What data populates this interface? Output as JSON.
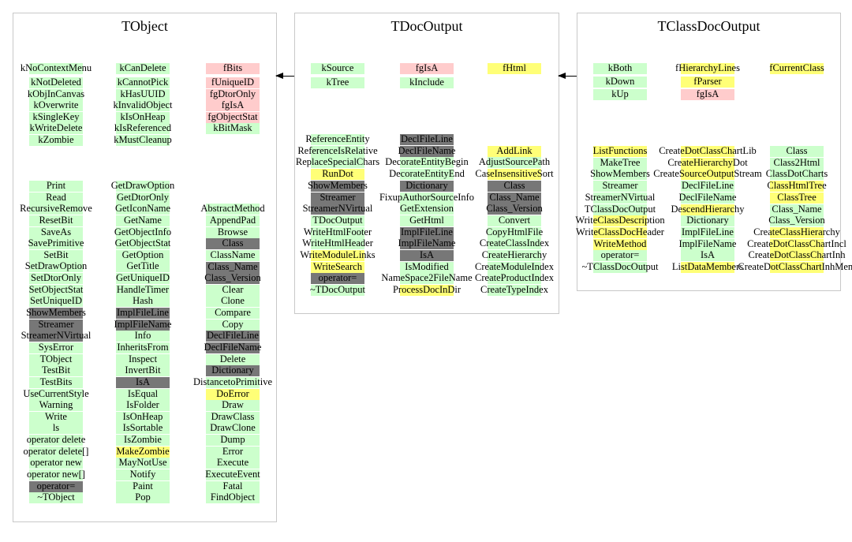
{
  "colors": {
    "g": "#ccffcc",
    "p": "#ffcccc",
    "y": "#ffff77",
    "d": "#777777"
  },
  "classes": [
    {
      "name": "TObject",
      "groups": [
        {
          "cols": [
            [
              [
                "kNoContextMenu",
                "g"
              ]
            ],
            [
              [
                "kCanDelete",
                "g"
              ]
            ],
            [
              [
                "fBits",
                "p"
              ]
            ]
          ]
        },
        {
          "cols": [
            [
              [
                "kNotDeleted",
                "g"
              ],
              [
                "kObjInCanvas",
                "g"
              ],
              [
                "kOverwrite",
                "g"
              ],
              [
                "kSingleKey",
                "g"
              ],
              [
                "kWriteDelete",
                "g"
              ],
              [
                "kZombie",
                "g"
              ]
            ],
            [
              [
                "kCannotPick",
                "g"
              ],
              [
                "kHasUUID",
                "g"
              ],
              [
                "kInvalidObject",
                "g"
              ],
              [
                "kIsOnHeap",
                "g"
              ],
              [
                "kIsReferenced",
                "g"
              ],
              [
                "kMustCleanup",
                "g"
              ]
            ],
            [
              [
                "fUniqueID",
                "p"
              ],
              [
                "fgDtorOnly",
                "p"
              ],
              [
                "fgIsA",
                "p"
              ],
              [
                "fgObjectStat",
                "p"
              ],
              [
                "kBitMask",
                "g"
              ]
            ]
          ]
        },
        {
          "cols": [
            [
              [
                "Print",
                "g"
              ],
              [
                "Read",
                "g"
              ],
              [
                "RecursiveRemove",
                "g"
              ],
              [
                "ResetBit",
                "g"
              ],
              [
                "SaveAs",
                "g"
              ],
              [
                "SavePrimitive",
                "g"
              ],
              [
                "SetBit",
                "g"
              ],
              [
                "SetDrawOption",
                "g"
              ],
              [
                "SetDtorOnly",
                "g"
              ],
              [
                "SetObjectStat",
                "g"
              ],
              [
                "SetUniqueID",
                "g"
              ],
              [
                "ShowMembers",
                "d"
              ],
              [
                "Streamer",
                "d"
              ],
              [
                "StreamerNVirtual",
                "d"
              ],
              [
                "SysError",
                "g"
              ],
              [
                "TObject",
                "g"
              ],
              [
                "TestBit",
                "g"
              ],
              [
                "TestBits",
                "g"
              ],
              [
                "UseCurrentStyle",
                "g"
              ],
              [
                "Warning",
                "g"
              ],
              [
                "Write",
                "g"
              ],
              [
                "ls",
                "g"
              ],
              [
                "operator delete",
                "g"
              ],
              [
                "operator delete[]",
                "g"
              ],
              [
                "operator new",
                "g"
              ],
              [
                "operator new[]",
                "g"
              ],
              [
                "operator=",
                "d"
              ],
              [
                "~TObject",
                "g"
              ]
            ],
            [
              [
                "GetDrawOption",
                "g"
              ],
              [
                "GetDtorOnly",
                "g"
              ],
              [
                "GetIconName",
                "g"
              ],
              [
                "GetName",
                "g"
              ],
              [
                "GetObjectInfo",
                "g"
              ],
              [
                "GetObjectStat",
                "g"
              ],
              [
                "GetOption",
                "g"
              ],
              [
                "GetTitle",
                "g"
              ],
              [
                "GetUniqueID",
                "g"
              ],
              [
                "HandleTimer",
                "g"
              ],
              [
                "Hash",
                "g"
              ],
              [
                "ImplFileLine",
                "d"
              ],
              [
                "ImplFileName",
                "d"
              ],
              [
                "Info",
                "g"
              ],
              [
                "InheritsFrom",
                "g"
              ],
              [
                "Inspect",
                "g"
              ],
              [
                "InvertBit",
                "g"
              ],
              [
                "IsA",
                "d"
              ],
              [
                "IsEqual",
                "g"
              ],
              [
                "IsFolder",
                "g"
              ],
              [
                "IsOnHeap",
                "g"
              ],
              [
                "IsSortable",
                "g"
              ],
              [
                "IsZombie",
                "g"
              ],
              [
                "MakeZombie",
                "y"
              ],
              [
                "MayNotUse",
                "g"
              ],
              [
                "Notify",
                "g"
              ],
              [
                "Paint",
                "g"
              ],
              [
                "Pop",
                "g"
              ]
            ],
            [
              [
                "AbstractMethod",
                "g"
              ],
              [
                "AppendPad",
                "g"
              ],
              [
                "Browse",
                "g"
              ],
              [
                "Class",
                "d"
              ],
              [
                "ClassName",
                "g"
              ],
              [
                "Class_Name",
                "d"
              ],
              [
                "Class_Version",
                "d"
              ],
              [
                "Clear",
                "g"
              ],
              [
                "Clone",
                "g"
              ],
              [
                "Compare",
                "g"
              ],
              [
                "Copy",
                "g"
              ],
              [
                "DeclFileLine",
                "d"
              ],
              [
                "DeclFileName",
                "d"
              ],
              [
                "Delete",
                "g"
              ],
              [
                "Dictionary",
                "d"
              ],
              [
                "DistancetoPrimitive",
                "g"
              ],
              [
                "DoError",
                "y"
              ],
              [
                "Draw",
                "g"
              ],
              [
                "DrawClass",
                "g"
              ],
              [
                "DrawClone",
                "g"
              ],
              [
                "Dump",
                "g"
              ],
              [
                "Error",
                "g"
              ],
              [
                "Execute",
                "g"
              ],
              [
                "ExecuteEvent",
                "g"
              ],
              [
                "Fatal",
                "g"
              ],
              [
                "FindObject",
                "g"
              ]
            ]
          ]
        }
      ]
    },
    {
      "name": "TDocOutput",
      "groups": [
        {
          "cols": [
            [
              [
                "kSource",
                "g"
              ],
              [
                "kTree",
                "g"
              ]
            ],
            [
              [
                "fgIsA",
                "p"
              ],
              [
                "kInclude",
                "g"
              ]
            ],
            [
              [
                "fHtml",
                "y"
              ]
            ]
          ]
        },
        {
          "cols": [
            [
              [
                "ReferenceEntity",
                "g"
              ],
              [
                "ReferenceIsRelative",
                "g"
              ],
              [
                "ReplaceSpecialChars",
                "g"
              ],
              [
                "RunDot",
                "y"
              ],
              [
                "ShowMembers",
                "d"
              ],
              [
                "Streamer",
                "d"
              ],
              [
                "StreamerNVirtual",
                "d"
              ],
              [
                "TDocOutput",
                "g"
              ],
              [
                "WriteHtmlFooter",
                "g"
              ],
              [
                "WriteHtmlHeader",
                "g"
              ],
              [
                "WriteModuleLinks",
                "y"
              ],
              [
                "WriteSearch",
                "y"
              ],
              [
                "operator=",
                "d"
              ],
              [
                "~TDocOutput",
                "g"
              ]
            ],
            [
              [
                "DeclFileLine",
                "d"
              ],
              [
                "DeclFileName",
                "d"
              ],
              [
                "DecorateEntityBegin",
                "g"
              ],
              [
                "DecorateEntityEnd",
                "g"
              ],
              [
                "Dictionary",
                "d"
              ],
              [
                "FixupAuthorSourceInfo",
                "g"
              ],
              [
                "GetExtension",
                "g"
              ],
              [
                "GetHtml",
                "g"
              ],
              [
                "ImplFileLine",
                "d"
              ],
              [
                "ImplFileName",
                "d"
              ],
              [
                "IsA",
                "d"
              ],
              [
                "IsModified",
                "g"
              ],
              [
                "NameSpace2FileName",
                "g"
              ],
              [
                "ProcessDocInDir",
                "y"
              ]
            ],
            [
              [
                "AddLink",
                "y"
              ],
              [
                "AdjustSourcePath",
                "g"
              ],
              [
                "CaseInsensitiveSort",
                "y"
              ],
              [
                "Class",
                "d"
              ],
              [
                "Class_Name",
                "d"
              ],
              [
                "Class_Version",
                "d"
              ],
              [
                "Convert",
                "g"
              ],
              [
                "CopyHtmlFile",
                "g"
              ],
              [
                "CreateClassIndex",
                "g"
              ],
              [
                "CreateHierarchy",
                "g"
              ],
              [
                "CreateModuleIndex",
                "g"
              ],
              [
                "CreateProductIndex",
                "g"
              ],
              [
                "CreateTypeIndex",
                "g"
              ]
            ]
          ]
        }
      ]
    },
    {
      "name": "TClassDocOutput",
      "groups": [
        {
          "cols": [
            [
              [
                "kBoth",
                "g"
              ],
              [
                "kDown",
                "g"
              ],
              [
                "kUp",
                "g"
              ]
            ],
            [
              [
                "fHierarchyLines",
                "y"
              ],
              [
                "fParser",
                "y"
              ],
              [
                "fgIsA",
                "p"
              ]
            ],
            [
              [
                "fCurrentClass",
                "y"
              ]
            ]
          ]
        },
        {
          "cols": [
            [
              [
                "ListFunctions",
                "y"
              ],
              [
                "MakeTree",
                "g"
              ],
              [
                "ShowMembers",
                "g"
              ],
              [
                "Streamer",
                "g"
              ],
              [
                "StreamerNVirtual",
                "g"
              ],
              [
                "TClassDocOutput",
                "g"
              ],
              [
                "WriteClassDescription",
                "y"
              ],
              [
                "WriteClassDocHeader",
                "y"
              ],
              [
                "WriteMethod",
                "y"
              ],
              [
                "operator=",
                "g"
              ],
              [
                "~TClassDocOutput",
                "g"
              ]
            ],
            [
              [
                "CreateDotClassChartLib",
                "y"
              ],
              [
                "CreateHierarchyDot",
                "y"
              ],
              [
                "CreateSourceOutputStream",
                "y"
              ],
              [
                "DeclFileLine",
                "g"
              ],
              [
                "DeclFileName",
                "g"
              ],
              [
                "DescendHierarchy",
                "y"
              ],
              [
                "Dictionary",
                "g"
              ],
              [
                "ImplFileLine",
                "g"
              ],
              [
                "ImplFileName",
                "g"
              ],
              [
                "IsA",
                "g"
              ],
              [
                "ListDataMembers",
                "y"
              ]
            ],
            [
              [
                "Class",
                "g"
              ],
              [
                "Class2Html",
                "g"
              ],
              [
                "ClassDotCharts",
                "g"
              ],
              [
                "ClassHtmlTree",
                "y"
              ],
              [
                "ClassTree",
                "y"
              ],
              [
                "Class_Name",
                "g"
              ],
              [
                "Class_Version",
                "g"
              ],
              [
                "CreateClassHierarchy",
                "y"
              ],
              [
                "CreateDotClassChartIncl",
                "y"
              ],
              [
                "CreateDotClassChartInh",
                "y"
              ],
              [
                "CreateDotClassChartInhMem",
                "y"
              ]
            ]
          ]
        }
      ]
    }
  ]
}
